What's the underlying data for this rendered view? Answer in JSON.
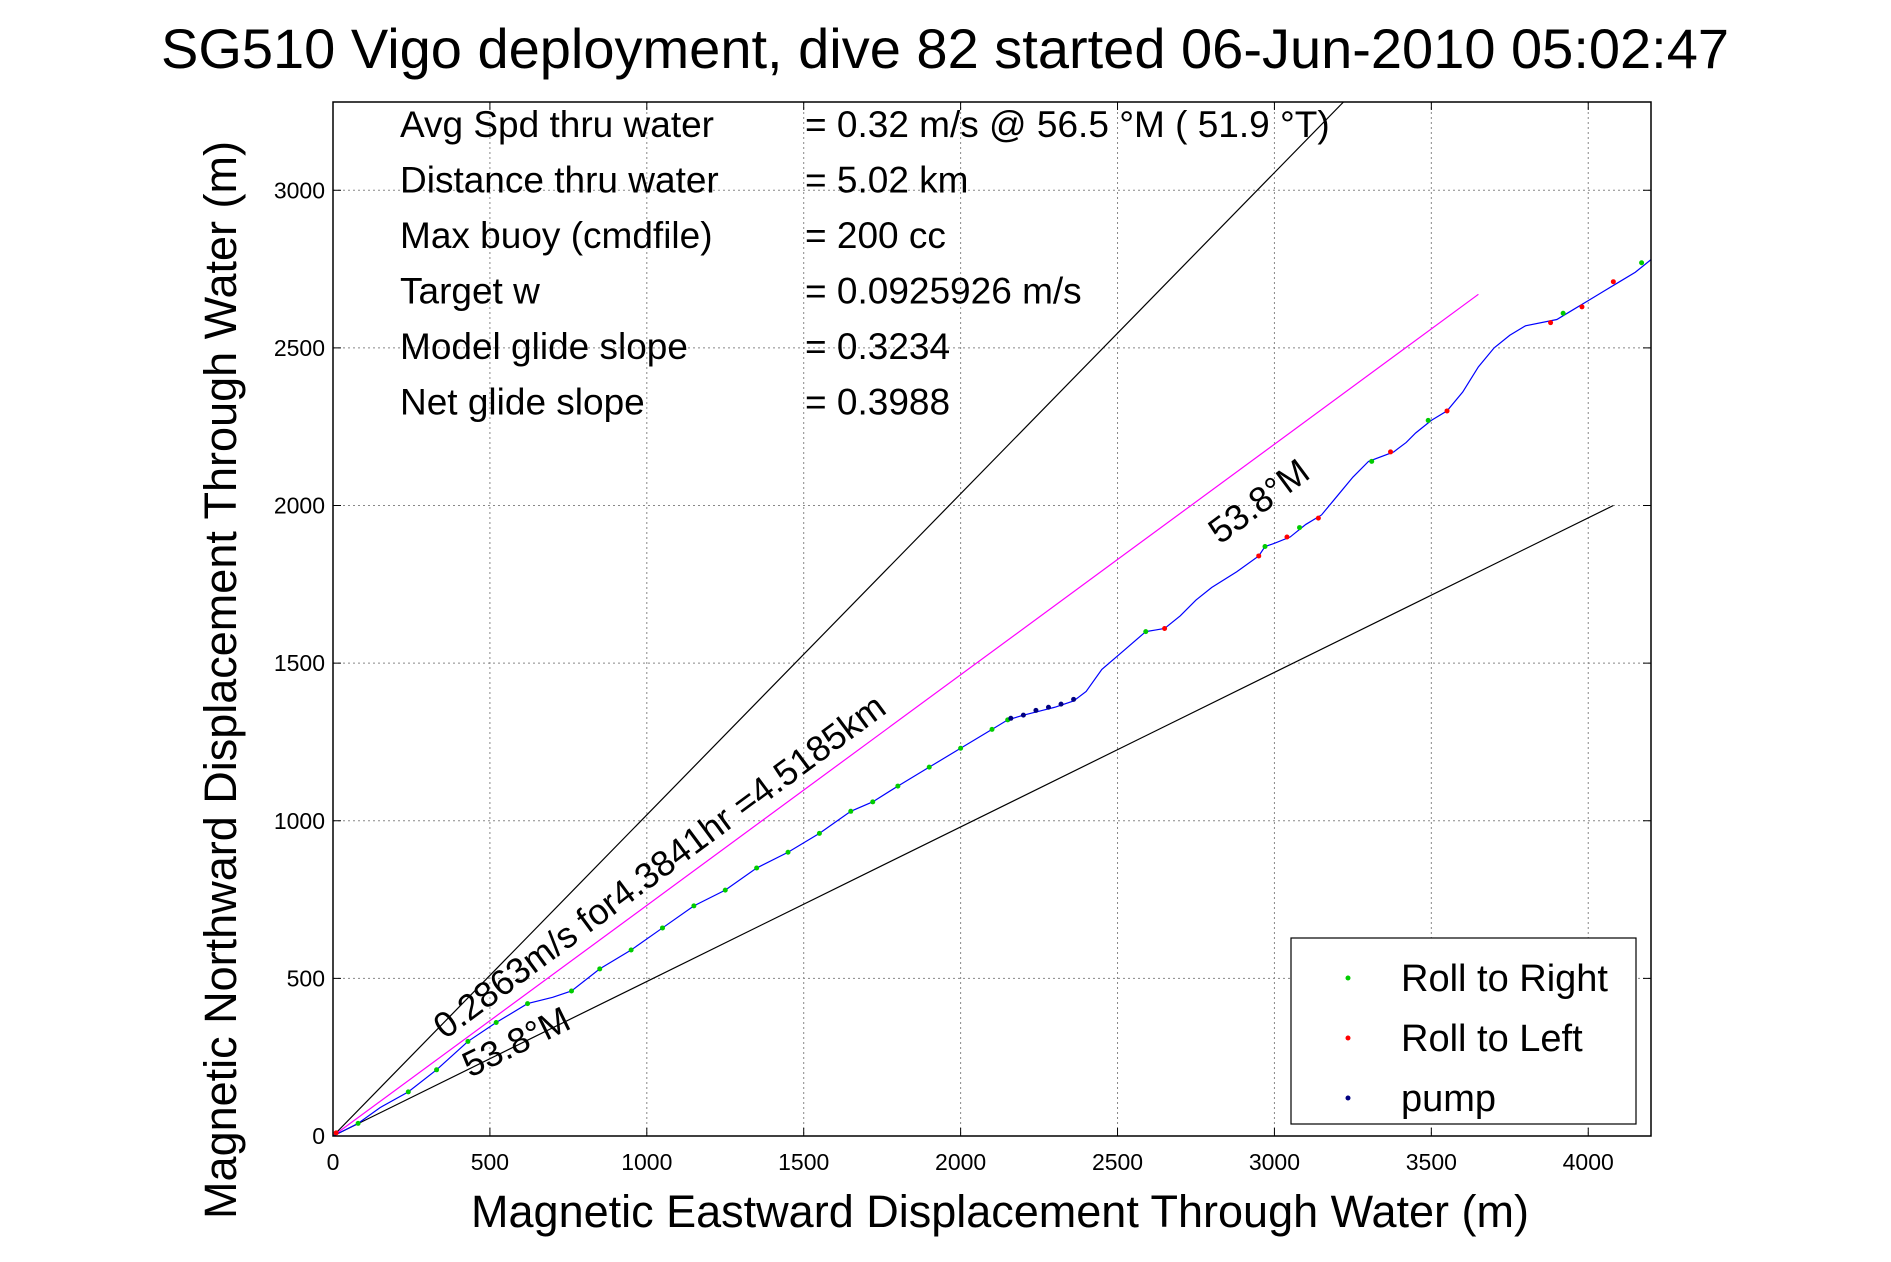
{
  "chart_data": {
    "type": "line",
    "title": "SG510 Vigo deployment, dive 82 started 06-Jun-2010 05:02:47",
    "xlabel": "Magnetic Eastward Displacement Through Water (m)",
    "ylabel": "Magnetic Northward Displacement Through Water (m)",
    "xlim": [
      0,
      4200
    ],
    "ylim": [
      0,
      3280
    ],
    "xticks": [
      0,
      500,
      1000,
      1500,
      2000,
      2500,
      3000,
      3500,
      4000
    ],
    "yticks": [
      0,
      500,
      1000,
      1500,
      2000,
      2500,
      3000
    ],
    "grid": true,
    "legend_position": "bottom-right",
    "info_lines": [
      {
        "label": "Avg Spd thru water",
        "value": "=  0.32 m/s @  56.5 °M ( 51.9 °T)"
      },
      {
        "label": "Distance thru water",
        "value": "=  5.02 km"
      },
      {
        "label": "Max buoy (cmdfile)",
        "value": "= 200 cc"
      },
      {
        "label": "Target w",
        "value": "= 0.0925926 m/s"
      },
      {
        "label": "Model glide slope",
        "value": "= 0.3234"
      },
      {
        "label": "Net glide slope",
        "value": "= 0.3988"
      }
    ],
    "annotations": {
      "net_track": "0.2863m/s for4.3841hr =4.5185km",
      "heading_lower": "53.8°M",
      "heading_upper": "53.8°M"
    },
    "reference_lines": [
      {
        "color": "#000000",
        "x": [
          0,
          3220
        ],
        "y": [
          0,
          3280
        ]
      },
      {
        "color": "#000000",
        "x": [
          0,
          4080
        ],
        "y": [
          0,
          2000
        ]
      },
      {
        "color": "#ff00ff",
        "x": [
          0,
          3650
        ],
        "y": [
          0,
          2670
        ]
      }
    ],
    "series": [
      {
        "type": "line",
        "color": "#0000ff",
        "x": [
          0,
          80,
          150,
          240,
          330,
          430,
          520,
          620,
          700,
          760,
          850,
          950,
          1050,
          1150,
          1250,
          1350,
          1450,
          1550,
          1650,
          1720,
          1800,
          1900,
          2000,
          2100,
          2150,
          2200,
          2260,
          2300,
          2360,
          2400,
          2450,
          2520,
          2590,
          2620,
          2650,
          2700,
          2750,
          2800,
          2880,
          2950,
          2970,
          3000,
          3050,
          3100,
          3150,
          3200,
          3250,
          3300,
          3380,
          3420,
          3450,
          3500,
          3550,
          3600,
          3650,
          3700,
          3750,
          3800,
          3900,
          3950,
          4000,
          4050,
          4100,
          4150,
          4200
        ],
        "y": [
          0,
          40,
          90,
          140,
          210,
          300,
          360,
          420,
          440,
          460,
          530,
          590,
          660,
          730,
          780,
          850,
          900,
          960,
          1030,
          1060,
          1110,
          1170,
          1230,
          1290,
          1320,
          1335,
          1350,
          1360,
          1380,
          1410,
          1480,
          1540,
          1600,
          1605,
          1610,
          1650,
          1700,
          1740,
          1790,
          1840,
          1870,
          1880,
          1900,
          1940,
          1970,
          2030,
          2090,
          2140,
          2170,
          2200,
          2230,
          2270,
          2300,
          2360,
          2440,
          2500,
          2540,
          2570,
          2590,
          2620,
          2650,
          2680,
          2710,
          2740,
          2780
        ]
      },
      {
        "name": "Roll to Right",
        "type": "scatter",
        "color": "#00cc00",
        "x": [
          80,
          240,
          330,
          430,
          520,
          620,
          760,
          850,
          950,
          1050,
          1150,
          1250,
          1350,
          1450,
          1550,
          1650,
          1720,
          1800,
          1900,
          2000,
          2100,
          2150,
          2590,
          2970,
          3080,
          3310,
          3490,
          3920,
          4170
        ],
        "y": [
          40,
          140,
          210,
          300,
          360,
          420,
          460,
          530,
          590,
          660,
          730,
          780,
          850,
          900,
          960,
          1030,
          1060,
          1110,
          1170,
          1230,
          1290,
          1320,
          1600,
          1870,
          1930,
          2140,
          2270,
          2610,
          2770
        ]
      },
      {
        "name": "Roll to Left",
        "type": "scatter",
        "color": "#ff0000",
        "x": [
          10,
          2650,
          2950,
          3040,
          3140,
          3370,
          3550,
          3880,
          3980,
          4080
        ],
        "y": [
          10,
          1610,
          1840,
          1900,
          1960,
          2170,
          2300,
          2580,
          2630,
          2710
        ]
      },
      {
        "name": "pump",
        "type": "scatter",
        "color": "#000080",
        "x": [
          2160,
          2200,
          2240,
          2280,
          2320,
          2360
        ],
        "y": [
          1325,
          1335,
          1350,
          1360,
          1370,
          1385
        ]
      }
    ]
  }
}
